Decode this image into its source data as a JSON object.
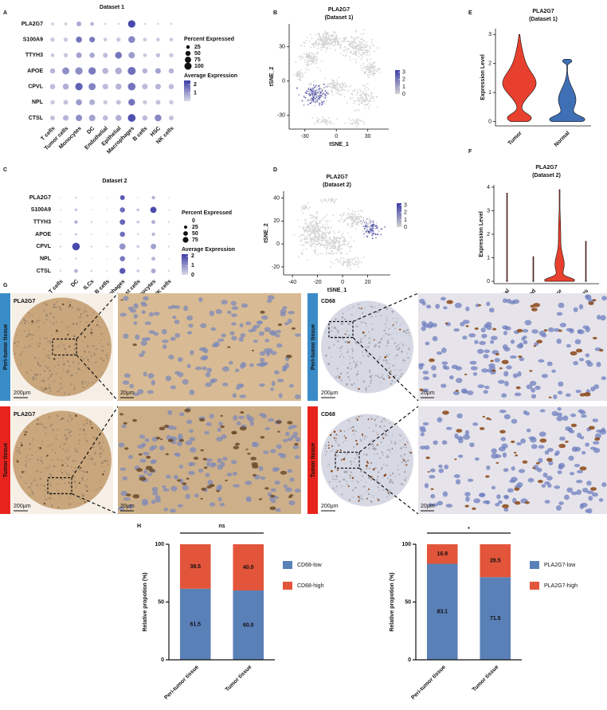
{
  "panel_labels": [
    "A",
    "B",
    "C",
    "D",
    "E",
    "F",
    "G",
    "H"
  ],
  "chart_data": [
    {
      "type": "dot",
      "title": "Dataset 1",
      "genes": [
        "PLA2G7",
        "S100A9",
        "TTYH3",
        "APOE",
        "CPVL",
        "NPL",
        "CTSL"
      ],
      "categories": [
        "T cells",
        "Tumor cells",
        "Monocytes",
        "DC",
        "Endothelial",
        "Epithelial",
        "Macrophages",
        "B cells",
        "HSC",
        "NK cells"
      ],
      "pct": [
        [
          10,
          10,
          25,
          15,
          5,
          5,
          60,
          5,
          5,
          5
        ],
        [
          20,
          20,
          40,
          35,
          15,
          20,
          50,
          15,
          15,
          15
        ],
        [
          15,
          20,
          35,
          30,
          25,
          50,
          45,
          15,
          20,
          20
        ],
        [
          30,
          55,
          60,
          60,
          40,
          50,
          70,
          30,
          35,
          30
        ],
        [
          30,
          40,
          60,
          55,
          35,
          40,
          65,
          35,
          35,
          30
        ],
        [
          20,
          25,
          40,
          35,
          20,
          25,
          50,
          20,
          25,
          20
        ],
        [
          25,
          35,
          45,
          45,
          30,
          40,
          65,
          30,
          50,
          25
        ]
      ],
      "avg": [
        [
          0.2,
          0.2,
          0.8,
          0.6,
          0.1,
          0.1,
          2.3,
          0.1,
          0.1,
          0.1
        ],
        [
          0.3,
          0.3,
          1.6,
          1.5,
          0.3,
          0.3,
          1.3,
          0.3,
          0.3,
          0.3
        ],
        [
          0.3,
          0.3,
          0.9,
          0.8,
          0.5,
          1.6,
          1.0,
          0.3,
          0.4,
          0.3
        ],
        [
          0.6,
          1.2,
          1.2,
          1.5,
          0.6,
          0.7,
          1.7,
          0.6,
          0.9,
          0.6
        ],
        [
          0.5,
          0.7,
          1.9,
          1.4,
          0.5,
          0.6,
          1.6,
          0.5,
          0.6,
          0.5
        ],
        [
          0.3,
          0.4,
          1.0,
          0.7,
          0.3,
          0.4,
          1.6,
          0.3,
          0.4,
          0.3
        ],
        [
          0.4,
          0.6,
          1.2,
          0.9,
          0.5,
          0.7,
          2.2,
          0.5,
          1.3,
          0.4
        ]
      ],
      "size_title": "Percent Expressed",
      "size_legend": [
        25,
        50,
        75,
        100
      ],
      "color_title": "Average Expression",
      "color_ticks": [
        1,
        2
      ],
      "color_range": [
        0,
        2.5
      ],
      "colors": [
        "#dcdce8",
        "#3b3ba6"
      ],
      "highlight": [
        "PLA2G7",
        "Macrophages"
      ],
      "highlight_color": "#e8231d"
    },
    {
      "type": "dot",
      "title": "Dataset 2",
      "genes": [
        "PLA2G7",
        "S100A9",
        "TTYH3",
        "APOE",
        "CPVL",
        "NPL",
        "CTSL"
      ],
      "categories": [
        "T cells",
        "DC",
        "ILCs",
        "B cells",
        "Macrophages",
        "Mast cells",
        "Monocytes",
        "NK cells"
      ],
      "pct": [
        [
          2,
          5,
          2,
          2,
          30,
          2,
          15,
          2
        ],
        [
          3,
          10,
          2,
          2,
          35,
          10,
          50,
          3
        ],
        [
          3,
          15,
          5,
          3,
          40,
          10,
          20,
          5
        ],
        [
          3,
          8,
          3,
          2,
          35,
          5,
          15,
          3
        ],
        [
          5,
          75,
          5,
          5,
          50,
          10,
          40,
          5
        ],
        [
          2,
          5,
          2,
          2,
          35,
          5,
          20,
          2
        ],
        [
          5,
          20,
          5,
          3,
          45,
          10,
          30,
          5
        ]
      ],
      "avg": [
        [
          0.1,
          0.2,
          0.1,
          0.1,
          1.8,
          0.1,
          0.6,
          0.1
        ],
        [
          0.1,
          0.3,
          0.1,
          0.1,
          1.5,
          0.4,
          2.0,
          0.1
        ],
        [
          0.1,
          0.6,
          0.2,
          0.1,
          1.6,
          0.3,
          0.6,
          0.1
        ],
        [
          0.1,
          0.3,
          0.1,
          0.1,
          1.5,
          0.2,
          0.5,
          0.1
        ],
        [
          0.1,
          2.0,
          0.2,
          0.1,
          1.0,
          0.3,
          0.8,
          0.1
        ],
        [
          0.1,
          0.2,
          0.1,
          0.1,
          1.4,
          0.1,
          0.5,
          0.1
        ],
        [
          0.1,
          0.5,
          0.2,
          0.1,
          1.8,
          0.3,
          0.7,
          0.1
        ]
      ],
      "size_title": "Percent Expressed",
      "size_legend": [
        0,
        25,
        50,
        75
      ],
      "color_title": "Average Expression",
      "color_ticks": [
        0,
        1,
        2
      ],
      "color_range": [
        0,
        2.2
      ],
      "colors": [
        "#dcdce8",
        "#3b3ba6"
      ],
      "highlight": [
        "PLA2G7",
        "Macrophages"
      ],
      "highlight_color": "#e8231d"
    },
    {
      "type": "tsne",
      "title": "PLA2G7",
      "subtitle": "(Dataset 1)",
      "xlabel": "tSNE_1",
      "ylabel": "tSNE_2",
      "xlim": [
        -45,
        50
      ],
      "ylim": [
        -42,
        50
      ],
      "xticks": [
        -30,
        0,
        30
      ],
      "yticks": [
        -30,
        0,
        30
      ],
      "colorbar_ticks": [
        0,
        1,
        2,
        3
      ],
      "colorbar_range": [
        0,
        3.3
      ],
      "colorbar_colors": [
        "#d4d4d4",
        "#3b3ba6"
      ]
    },
    {
      "type": "tsne",
      "title": "PLA2G7",
      "subtitle": "(Dataset 2)",
      "xlabel": "tSNE_1",
      "ylabel": "tSNE_2",
      "xlim": [
        -47,
        38
      ],
      "ylim": [
        -27,
        46
      ],
      "xticks": [
        -40,
        -20,
        0,
        20
      ],
      "yticks": [
        -20,
        0,
        20,
        40
      ],
      "colorbar_ticks": [
        0,
        1,
        2,
        3
      ],
      "colorbar_range": [
        0,
        3.3
      ],
      "colorbar_colors": [
        "#d4d4d4",
        "#3b3ba6"
      ]
    },
    {
      "type": "violin",
      "title": "PLA2G7",
      "subtitle": "(Dataset 1)",
      "ylabel": "Expression Level",
      "categories": [
        "Tumor",
        "Normal"
      ],
      "max": [
        3.0,
        2.15
      ],
      "colors": [
        "#e8402e",
        "#3f6fb5"
      ],
      "ylim": [
        -0.15,
        3.2
      ],
      "yticks": [
        0,
        1,
        2,
        3
      ]
    },
    {
      "type": "violin",
      "title": "PLA2G7",
      "subtitle": "(Dataset 2)",
      "ylabel": "Expression Level",
      "categories": [
        "Normal",
        "Blood",
        "Tumor",
        "Ascites"
      ],
      "max": [
        3.75,
        1.05,
        3.9,
        1.7
      ],
      "colors": [
        "#e8402e",
        "#e8402e",
        "#e8402e",
        "#e8402e"
      ],
      "ylim": [
        -0.1,
        4.1
      ],
      "yticks": [
        0,
        1,
        2,
        3,
        4
      ]
    },
    {
      "type": "stacked_bar",
      "ylabel": "Relative propotion (%)",
      "annotation": "ns",
      "categories": [
        "Peri-tumor tissue",
        "Tumor tissue"
      ],
      "series": [
        {
          "name": "CD68-low",
          "color": "#5a80b8",
          "values": [
            61.5,
            60.0
          ],
          "value_labels": [
            "61.5",
            "60.0"
          ]
        },
        {
          "name": "CD68-high",
          "color": "#e2553a",
          "values": [
            38.5,
            40.0
          ],
          "value_labels": [
            "38.5",
            "40.0"
          ]
        }
      ],
      "ylim": [
        0,
        100
      ],
      "yticks": [
        0,
        50,
        100
      ]
    },
    {
      "type": "stacked_bar",
      "ylabel": "Relative propotion (%)",
      "annotation": "*",
      "categories": [
        "Peri-tumor tissue",
        "Tumor tissue"
      ],
      "series": [
        {
          "name": "PLA2G7-low",
          "color": "#5a80b8",
          "values": [
            83.1,
            71.5
          ]
        },
        {
          "name": "PLA2G7-high",
          "color": "#e2553a",
          "values": [
            16.9,
            28.5
          ]
        }
      ],
      "ylim": [
        0,
        100
      ],
      "yticks": [
        0,
        50,
        100
      ]
    }
  ],
  "figure_g": {
    "markers": [
      "PLA2G7",
      "CD68"
    ],
    "rows": [
      "Peri-tumor tissue",
      "Tumor tissue"
    ],
    "scale_core": "200μm",
    "scale_zoom": "20μm"
  }
}
